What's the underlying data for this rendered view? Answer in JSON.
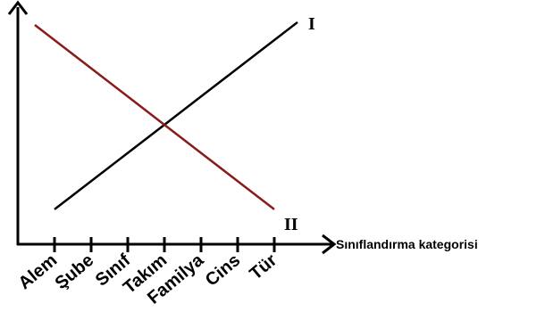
{
  "chart_data": {
    "type": "line",
    "title": "",
    "xlabel": "Sınıflandırma kategorisi",
    "ylabel": "",
    "categories": [
      "Alem",
      "Şube",
      "Sınıf",
      "Takım",
      "Familya",
      "Cins",
      "Tür"
    ],
    "ylim": [
      0,
      10
    ],
    "grid": false,
    "series": [
      {
        "name": "I",
        "values": [
          1,
          2.5,
          4,
          5.5,
          7,
          8.5,
          10
        ],
        "color": "#000000"
      },
      {
        "name": "II",
        "values": [
          10,
          8.5,
          7,
          5.5,
          4,
          2.5,
          1
        ],
        "color": "#8b1a1a"
      }
    ]
  }
}
